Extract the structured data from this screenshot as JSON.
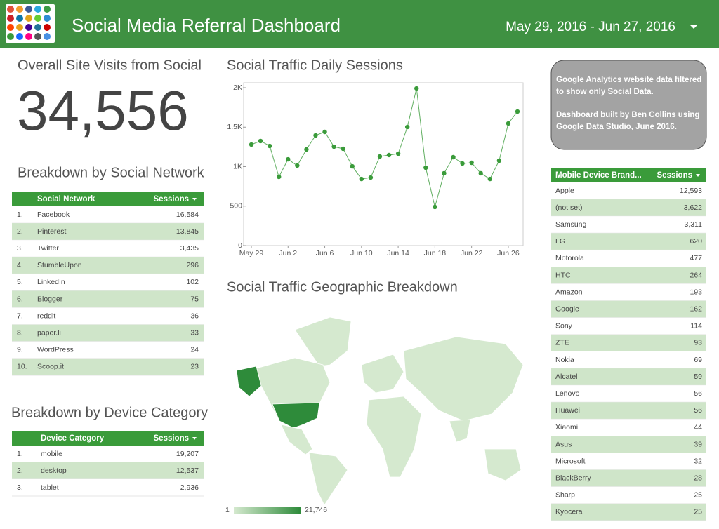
{
  "header": {
    "title": "Social Media Referral Dashboard",
    "date_range": "May 29, 2016 - Jun 27, 2016"
  },
  "scorecard": {
    "title": "Overall Site Visits from Social",
    "value": "34,556"
  },
  "social_table": {
    "title": "Breakdown by Social Network",
    "columns": [
      "Social Network",
      "Sessions"
    ],
    "rows": [
      [
        "1.",
        "Facebook",
        "16,584"
      ],
      [
        "2.",
        "Pinterest",
        "13,845"
      ],
      [
        "3.",
        "Twitter",
        "3,435"
      ],
      [
        "4.",
        "StumbleUpon",
        "296"
      ],
      [
        "5.",
        "LinkedIn",
        "102"
      ],
      [
        "6.",
        "Blogger",
        "75"
      ],
      [
        "7.",
        "reddit",
        "36"
      ],
      [
        "8.",
        "paper.li",
        "33"
      ],
      [
        "9.",
        "WordPress",
        "24"
      ],
      [
        "10.",
        "Scoop.it",
        "23"
      ]
    ]
  },
  "device_table": {
    "title": "Breakdown by Device Category",
    "columns": [
      "Device Category",
      "Sessions"
    ],
    "rows": [
      [
        "1.",
        "mobile",
        "19,207"
      ],
      [
        "2.",
        "desktop",
        "12,537"
      ],
      [
        "3.",
        "tablet",
        "2,936"
      ]
    ]
  },
  "chart_data": {
    "type": "line",
    "title": "Social Traffic Daily Sessions",
    "x": [
      "May 29",
      "May 30",
      "May 31",
      "Jun 1",
      "Jun 2",
      "Jun 3",
      "Jun 4",
      "Jun 5",
      "Jun 6",
      "Jun 7",
      "Jun 8",
      "Jun 9",
      "Jun 10",
      "Jun 11",
      "Jun 12",
      "Jun 13",
      "Jun 14",
      "Jun 15",
      "Jun 16",
      "Jun 17",
      "Jun 18",
      "Jun 19",
      "Jun 20",
      "Jun 21",
      "Jun 22",
      "Jun 23",
      "Jun 24",
      "Jun 25",
      "Jun 26",
      "Jun 27"
    ],
    "values": [
      1280,
      1325,
      1262,
      871,
      1093,
      1013,
      1218,
      1396,
      1440,
      1253,
      1227,
      1004,
      844,
      862,
      1129,
      1147,
      1164,
      1502,
      1991,
      987,
      489,
      916,
      1120,
      1040,
      1049,
      916,
      844,
      1076,
      1547,
      1698
    ],
    "color": "#3a9b3a",
    "xticks": [
      "May 29",
      "Jun 2",
      "Jun 6",
      "Jun 10",
      "Jun 14",
      "Jun 18",
      "Jun 22",
      "Jun 26"
    ],
    "ylim": [
      0,
      2000
    ],
    "yticks": [
      0,
      500,
      {
        "value": 1000,
        "label": "1K"
      },
      {
        "value": 1500,
        "label": "1.5K"
      },
      {
        "value": 2000,
        "label": "2K"
      }
    ],
    "grid": false
  },
  "map": {
    "title": "Social Traffic Geographic Breakdown",
    "legend_min": "1",
    "legend_max": "21,746"
  },
  "info": {
    "paragraphs": [
      "Google Analytics website data filtered to show only Social Data.",
      "Dashboard built by Ben Collins using Google Data Studio, June 2016."
    ]
  },
  "mobile_table": {
    "columns": [
      "Mobile Device Brand...",
      "Sessions"
    ],
    "rows": [
      [
        "Apple",
        "12,593"
      ],
      [
        "(not set)",
        "3,622"
      ],
      [
        "Samsung",
        "3,311"
      ],
      [
        "LG",
        "620"
      ],
      [
        "Motorola",
        "477"
      ],
      [
        "HTC",
        "264"
      ],
      [
        "Amazon",
        "193"
      ],
      [
        "Google",
        "162"
      ],
      [
        "Sony",
        "114"
      ],
      [
        "ZTE",
        "93"
      ],
      [
        "Nokia",
        "69"
      ],
      [
        "Alcatel",
        "59"
      ],
      [
        "Lenovo",
        "56"
      ],
      [
        "Huawei",
        "56"
      ],
      [
        "Xiaomi",
        "44"
      ],
      [
        "Asus",
        "39"
      ],
      [
        "Microsoft",
        "32"
      ],
      [
        "BlackBerry",
        "28"
      ],
      [
        "Sharp",
        "25"
      ],
      [
        "Kyocera",
        "25"
      ]
    ]
  }
}
